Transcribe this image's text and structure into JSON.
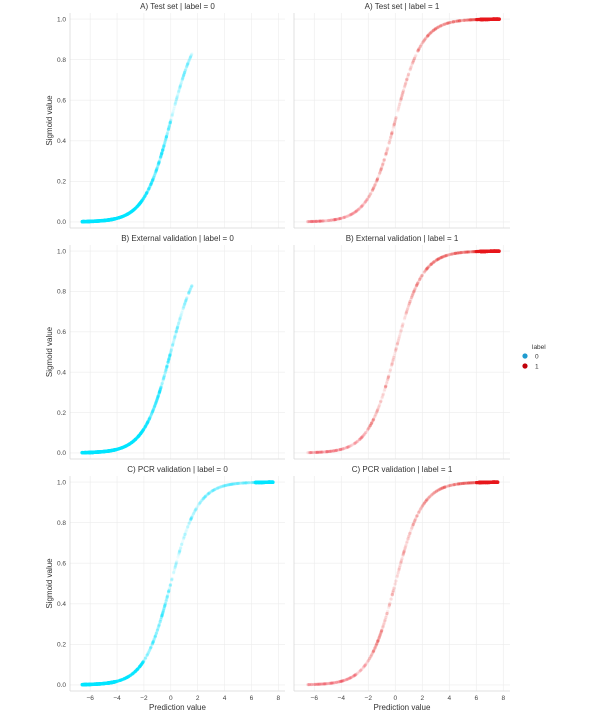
{
  "chart_data": {
    "type": "scatter",
    "description_of_curve": "sigmoid",
    "xlabel": "Prediction value",
    "ylabel": "Sigmoid value",
    "x_ticks": [
      -6,
      -4,
      -2,
      0,
      2,
      4,
      6,
      8
    ],
    "y_ticks": [
      "0.0",
      "0.2",
      "0.4",
      "0.6",
      "0.8",
      "1.0"
    ],
    "xlim": [
      -7.5,
      8.5
    ],
    "ylim": [
      -0.03,
      1.03
    ],
    "grid": true,
    "legend": {
      "title": "label",
      "placement": "right",
      "entries": [
        {
          "label": "0",
          "color": "#1f9bcf"
        },
        {
          "label": "1",
          "color": "#c0000a"
        }
      ]
    },
    "series_colors": {
      "0": "#00e5ff",
      "1": "#e8171c"
    },
    "panels": [
      {
        "title": "A) Test set | label = 0",
        "label": "0",
        "x_range": [
          -6.6,
          1.6
        ]
      },
      {
        "title": "A) Test set | label = 1",
        "label": "1",
        "x_range": [
          -6.5,
          7.7
        ]
      },
      {
        "title": "B) External validation | label = 0",
        "label": "0",
        "x_range": [
          -6.6,
          1.6
        ]
      },
      {
        "title": "B) External validation | label = 1",
        "label": "1",
        "x_range": [
          -6.5,
          7.7
        ]
      },
      {
        "title": "C) PCR validation | label = 0",
        "label": "0",
        "x_range": [
          -6.6,
          7.6
        ]
      },
      {
        "title": "C) PCR validation | label = 1",
        "label": "1",
        "x_range": [
          -6.5,
          7.6
        ]
      }
    ]
  }
}
